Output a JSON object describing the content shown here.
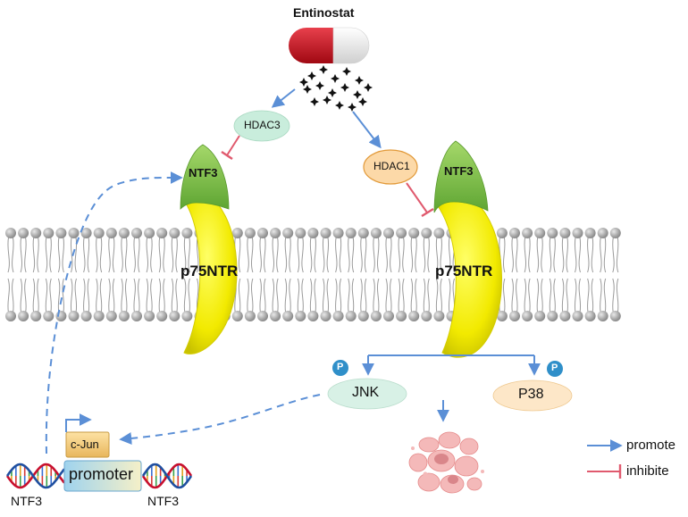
{
  "drug": {
    "name": "Entinostat"
  },
  "labels": {
    "hdac3": "HDAC3",
    "hdac1": "HDAC1",
    "ntf3_receptor_left": "NTF3",
    "ntf3_receptor_right": "NTF3",
    "p75ntr_left": "p75NTR",
    "p75ntr_right": "p75NTR",
    "jnk": "JNK",
    "p38": "P38",
    "phospho_jnk": "P",
    "phospho_p38": "P",
    "cjun": "c-Jun",
    "promoter": "promoter",
    "ntf3_gene_left": "NTF3",
    "ntf3_gene_right": "NTF3"
  },
  "legend": {
    "promote": "promote",
    "inhibit": "inhibite"
  },
  "colors": {
    "promote_arrow": "#5b8fd6",
    "inhibit_bar": "#e05a6e",
    "receptor_yellow": "#f5ef00",
    "ntf3_green": "#7ec244",
    "hdac3_fill": "#c9eddc",
    "hdac1_fill": "#fcd9a8",
    "membrane_head": "#a6a6a6",
    "pill_red": "#cc1022"
  }
}
